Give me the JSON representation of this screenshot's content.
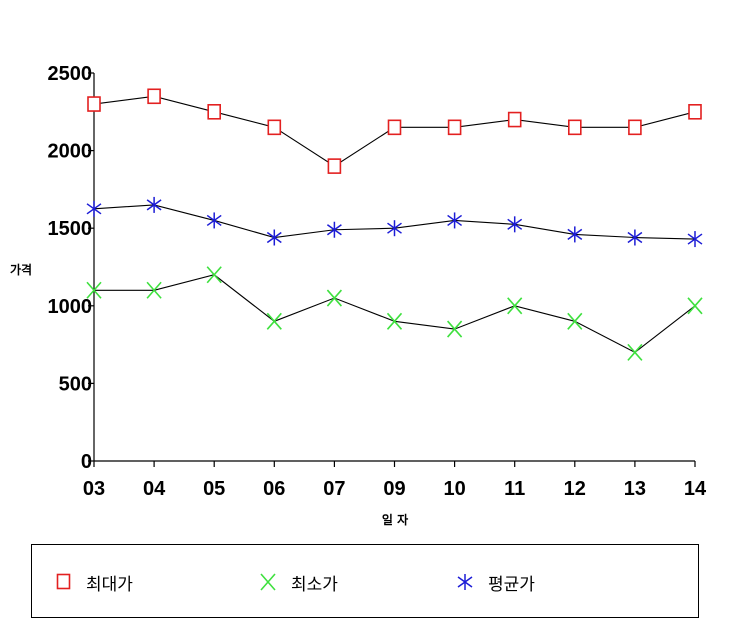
{
  "chart_data": {
    "type": "line",
    "title": "",
    "xlabel": "일 자",
    "ylabel": "가격",
    "categories": [
      "03",
      "04",
      "05",
      "06",
      "07",
      "09",
      "10",
      "11",
      "12",
      "13",
      "14"
    ],
    "ylim": [
      0,
      2500
    ],
    "yticks": [
      "0",
      "500",
      "1000",
      "1500",
      "2000",
      "2500"
    ],
    "grid": false,
    "legend_position": "bottom",
    "series": [
      {
        "name": "최대가",
        "values": [
          2300,
          2350,
          2250,
          2150,
          1900,
          2150,
          2150,
          2200,
          2150,
          2150,
          2250
        ],
        "marker": "square",
        "color": "#e32020"
      },
      {
        "name": "최소가",
        "values": [
          1100,
          1100,
          1200,
          900,
          1050,
          900,
          850,
          1000,
          900,
          700,
          1000
        ],
        "marker": "x",
        "color": "#3ee03e"
      },
      {
        "name": "평균가",
        "values": [
          1625,
          1650,
          1550,
          1440,
          1490,
          1500,
          1550,
          1525,
          1460,
          1440,
          1430
        ],
        "marker": "asterisk",
        "color": "#1c1cd6"
      }
    ]
  }
}
